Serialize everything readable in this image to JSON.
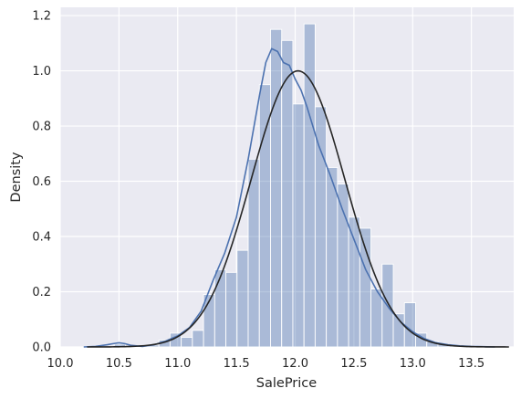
{
  "chart_data": {
    "type": "histogram",
    "title": "",
    "xlabel": "SalePrice",
    "ylabel": "Density",
    "xlim": [
      10.0,
      13.86
    ],
    "ylim": [
      0.0,
      1.23
    ],
    "xticks": [
      10.0,
      10.5,
      11.0,
      11.5,
      12.0,
      12.5,
      13.0,
      13.5
    ],
    "xtick_labels": [
      "10.0",
      "10.5",
      "11.0",
      "11.5",
      "12.0",
      "12.5",
      "13.0",
      "13.5"
    ],
    "yticks": [
      0.0,
      0.2,
      0.4,
      0.6,
      0.8,
      1.0,
      1.2
    ],
    "ytick_labels": [
      "0.0",
      "0.2",
      "0.4",
      "0.6",
      "0.8",
      "1.0",
      "1.2"
    ],
    "grid": true,
    "background_color": "#eaeaf2",
    "bar_color": "#4c72b0",
    "kde_color": "#4c72b0",
    "fit_color": "#262626",
    "bins": [
      {
        "x0": 10.46,
        "x1": 10.555,
        "density": 0.01
      },
      {
        "x0": 10.555,
        "x1": 10.65,
        "density": 0.0
      },
      {
        "x0": 10.65,
        "x1": 10.745,
        "density": 0.0
      },
      {
        "x0": 10.745,
        "x1": 10.84,
        "density": 0.007
      },
      {
        "x0": 10.84,
        "x1": 10.935,
        "density": 0.025
      },
      {
        "x0": 10.935,
        "x1": 11.03,
        "density": 0.05
      },
      {
        "x0": 11.03,
        "x1": 11.125,
        "density": 0.035
      },
      {
        "x0": 11.125,
        "x1": 11.22,
        "density": 0.06
      },
      {
        "x0": 11.22,
        "x1": 11.315,
        "density": 0.19
      },
      {
        "x0": 11.315,
        "x1": 11.41,
        "density": 0.28
      },
      {
        "x0": 11.41,
        "x1": 11.505,
        "density": 0.27
      },
      {
        "x0": 11.505,
        "x1": 11.6,
        "density": 0.35
      },
      {
        "x0": 11.6,
        "x1": 11.695,
        "density": 0.68
      },
      {
        "x0": 11.695,
        "x1": 11.79,
        "density": 0.95
      },
      {
        "x0": 11.79,
        "x1": 11.885,
        "density": 1.15
      },
      {
        "x0": 11.885,
        "x1": 11.98,
        "density": 1.11
      },
      {
        "x0": 11.98,
        "x1": 12.075,
        "density": 0.88
      },
      {
        "x0": 12.075,
        "x1": 12.17,
        "density": 1.17
      },
      {
        "x0": 12.17,
        "x1": 12.265,
        "density": 0.87
      },
      {
        "x0": 12.265,
        "x1": 12.36,
        "density": 0.65
      },
      {
        "x0": 12.36,
        "x1": 12.455,
        "density": 0.59
      },
      {
        "x0": 12.455,
        "x1": 12.55,
        "density": 0.47
      },
      {
        "x0": 12.55,
        "x1": 12.645,
        "density": 0.43
      },
      {
        "x0": 12.645,
        "x1": 12.74,
        "density": 0.21
      },
      {
        "x0": 12.74,
        "x1": 12.835,
        "density": 0.3
      },
      {
        "x0": 12.835,
        "x1": 12.93,
        "density": 0.12
      },
      {
        "x0": 12.93,
        "x1": 13.025,
        "density": 0.16
      },
      {
        "x0": 13.025,
        "x1": 13.12,
        "density": 0.05
      },
      {
        "x0": 13.12,
        "x1": 13.215,
        "density": 0.02
      },
      {
        "x0": 13.215,
        "x1": 13.31,
        "density": 0.01
      },
      {
        "x0": 13.31,
        "x1": 13.405,
        "density": 0.005
      },
      {
        "x0": 13.405,
        "x1": 13.5,
        "density": 0.003
      }
    ],
    "kde": {
      "x": [
        10.2,
        10.3,
        10.4,
        10.45,
        10.5,
        10.55,
        10.6,
        10.7,
        10.8,
        10.9,
        11.0,
        11.1,
        11.2,
        11.3,
        11.4,
        11.5,
        11.6,
        11.7,
        11.75,
        11.8,
        11.85,
        11.9,
        11.95,
        12.0,
        12.05,
        12.1,
        12.2,
        12.3,
        12.4,
        12.5,
        12.6,
        12.7,
        12.8,
        12.9,
        13.0,
        13.1,
        13.2,
        13.3,
        13.4,
        13.5,
        13.6,
        13.7
      ],
      "y": [
        0.0,
        0.002,
        0.008,
        0.012,
        0.015,
        0.012,
        0.006,
        0.002,
        0.008,
        0.022,
        0.04,
        0.07,
        0.13,
        0.24,
        0.34,
        0.47,
        0.68,
        0.92,
        1.03,
        1.08,
        1.07,
        1.03,
        1.02,
        0.97,
        0.93,
        0.87,
        0.73,
        0.62,
        0.5,
        0.39,
        0.28,
        0.2,
        0.14,
        0.09,
        0.055,
        0.03,
        0.015,
        0.008,
        0.004,
        0.002,
        0.001,
        0.0
      ]
    },
    "normal_fit": {
      "mean": 12.024,
      "std": 0.399
    }
  }
}
